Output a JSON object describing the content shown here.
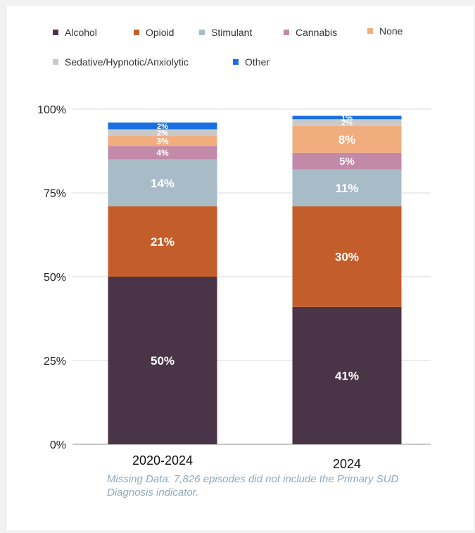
{
  "chart_data": {
    "type": "bar",
    "stacked": true,
    "categories": [
      "2020-2024",
      "2024"
    ],
    "series": [
      {
        "name": "Alcohol",
        "color": "#4a3448",
        "values": [
          50,
          41
        ],
        "labels": [
          "50%",
          "41%"
        ]
      },
      {
        "name": "Opioid",
        "color": "#c35e2c",
        "values": [
          21,
          30
        ],
        "labels": [
          "21%",
          "30%"
        ]
      },
      {
        "name": "Stimulant",
        "color": "#a7bcc7",
        "values": [
          14,
          11
        ],
        "labels": [
          "14%",
          "11%"
        ]
      },
      {
        "name": "Cannabis",
        "color": "#c28aa8",
        "values": [
          4,
          5
        ],
        "labels": [
          "4%",
          "5%"
        ]
      },
      {
        "name": "None",
        "color": "#f2ad7e",
        "values": [
          3,
          8
        ],
        "labels": [
          "3%",
          "8%"
        ]
      },
      {
        "name": "Sedative/Hypnotic/Anxiolytic",
        "color": "#c9c9c9",
        "values": [
          2,
          2
        ],
        "labels": [
          "2%",
          "2%"
        ]
      },
      {
        "name": "Other",
        "color": "#1a6fe0",
        "values": [
          2,
          1
        ],
        "labels": [
          "2%",
          "1%"
        ]
      }
    ],
    "yticks": [
      {
        "value": 0,
        "label": "0%"
      },
      {
        "value": 25,
        "label": "25%"
      },
      {
        "value": 50,
        "label": "50%"
      },
      {
        "value": 75,
        "label": "75%"
      },
      {
        "value": 100,
        "label": "100%"
      }
    ],
    "ylim": [
      0,
      100
    ],
    "grid": true,
    "legend_position": "top-left"
  },
  "note": "Missing Data: 7,826 episodes did not include the Primary SUD Diagnosis indicator."
}
